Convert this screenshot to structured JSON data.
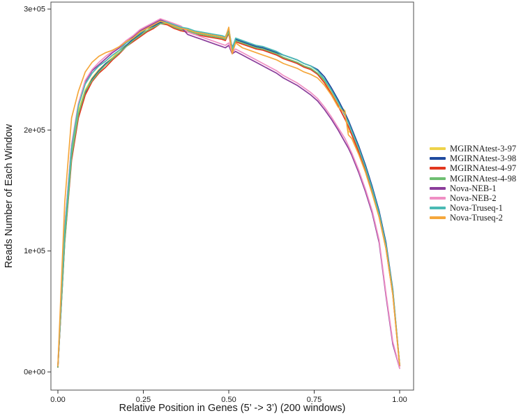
{
  "figure": {
    "background": "#ffffff",
    "panel_border_color": "#4c4c4c",
    "text_color": "#1a1a1a"
  },
  "chart_data": {
    "type": "line",
    "title": "",
    "xlabel": "Relative Position in Genes (5’ -> 3’) (200 windows)",
    "ylabel": "Reads Number of Each Window",
    "grid": false,
    "legend_position": "right",
    "xlim": [
      -0.02,
      1.04
    ],
    "ylim": [
      -15000,
      306000
    ],
    "x_ticks": {
      "values": [
        0,
        0.25,
        0.5,
        0.75,
        1.0
      ],
      "labels": [
        "0.00",
        "0.25",
        "0.50",
        "0.75",
        "1.00"
      ]
    },
    "y_ticks": {
      "values": [
        0,
        100000,
        200000,
        300000
      ],
      "labels": [
        "0e+00",
        "1e+05",
        "2e+05",
        "3e+05"
      ]
    },
    "values_scale": 1000,
    "x": [
      0,
      0.02,
      0.04,
      0.06,
      0.08,
      0.1,
      0.12,
      0.14,
      0.16,
      0.18,
      0.2,
      0.22,
      0.24,
      0.26,
      0.28,
      0.3,
      0.32,
      0.34,
      0.36,
      0.38,
      0.4,
      0.42,
      0.44,
      0.46,
      0.48,
      0.49,
      0.5,
      0.51,
      0.52,
      0.54,
      0.56,
      0.58,
      0.6,
      0.62,
      0.64,
      0.66,
      0.68,
      0.7,
      0.72,
      0.74,
      0.76,
      0.78,
      0.8,
      0.82,
      0.84,
      0.85,
      0.86,
      0.88,
      0.9,
      0.92,
      0.94,
      0.96,
      0.98,
      1.0
    ],
    "series": [
      {
        "name": "MGIRNAtest-3-97",
        "color": "#EED34A",
        "values": [
          4,
          110,
          179,
          216,
          233,
          243,
          250,
          255,
          260,
          266,
          270,
          274,
          280,
          282,
          287,
          290,
          288,
          285,
          284,
          283,
          280,
          281,
          278,
          277,
          276,
          277,
          283,
          266,
          275,
          272,
          270,
          268,
          267,
          265,
          263,
          260,
          258,
          256,
          253,
          251,
          247,
          240,
          231,
          221,
          216,
          199,
          197,
          183,
          167,
          149,
          129,
          103,
          65,
          6
        ]
      },
      {
        "name": "MGIRNAtest-3-98",
        "color": "#1F4A9E",
        "values": [
          4,
          109,
          177,
          212,
          231,
          242,
          249,
          255,
          259,
          264,
          270,
          275,
          279,
          284,
          286,
          289,
          289,
          286,
          284,
          282,
          281,
          280,
          279,
          278,
          277,
          276,
          282,
          268,
          275,
          273,
          271,
          269,
          268,
          266,
          264,
          262,
          260,
          258,
          255,
          253,
          250,
          244,
          235,
          225,
          214,
          208,
          201,
          187,
          171,
          153,
          133,
          107,
          68,
          6
        ]
      },
      {
        "name": "MGIRNAtest-4-97",
        "color": "#E2371F",
        "values": [
          4,
          107,
          175,
          210,
          229,
          240,
          247,
          252,
          258,
          263,
          269,
          273,
          277,
          281,
          284,
          288,
          287,
          284,
          282,
          281,
          279,
          278,
          277,
          276,
          275,
          274,
          280,
          264,
          273,
          271,
          269,
          267,
          266,
          264,
          262,
          259,
          257,
          255,
          252,
          250,
          246,
          239,
          230,
          220,
          209,
          203,
          196,
          182,
          166,
          148,
          128,
          102,
          64,
          5
        ]
      },
      {
        "name": "MGIRNAtest-4-98",
        "color": "#6EBE71",
        "values": [
          4,
          108,
          178,
          213,
          232,
          241,
          248,
          254,
          259,
          264,
          269,
          274,
          278,
          282,
          285,
          288,
          288,
          285,
          283,
          282,
          280,
          279,
          278,
          277,
          276,
          275,
          281,
          266,
          274,
          272,
          270,
          268,
          267,
          265,
          263,
          260,
          258,
          256,
          253,
          251,
          247,
          241,
          233,
          223,
          212,
          206,
          199,
          185,
          169,
          151,
          131,
          105,
          67,
          6
        ]
      },
      {
        "name": "Nova-NEB-1",
        "color": "#8B3D9B",
        "values": [
          5,
          119,
          187,
          221,
          240,
          249,
          254,
          259,
          264,
          268,
          273,
          277,
          282,
          285,
          288,
          291,
          289,
          287,
          285,
          279,
          277,
          275,
          273,
          271,
          269,
          268,
          270,
          263,
          265,
          262,
          259,
          256,
          253,
          250,
          247,
          243,
          240,
          237,
          233,
          229,
          224,
          217,
          209,
          200,
          190,
          185,
          179,
          165,
          149,
          131,
          107,
          63,
          23,
          3
        ]
      },
      {
        "name": "Nova-NEB-2",
        "color": "#F08FC4",
        "values": [
          5,
          120,
          188,
          222,
          241,
          250,
          256,
          261,
          265,
          269,
          274,
          278,
          283,
          286,
          289,
          292,
          290,
          288,
          286,
          281,
          279,
          277,
          275,
          273,
          271,
          270,
          272,
          264,
          267,
          264,
          261,
          258,
          255,
          252,
          249,
          245,
          242,
          239,
          235,
          231,
          226,
          219,
          211,
          202,
          193,
          187,
          181,
          167,
          151,
          133,
          109,
          65,
          25,
          3
        ]
      },
      {
        "name": "Nova-Truseq-1",
        "color": "#4ABAB4",
        "values": [
          5,
          117,
          185,
          220,
          238,
          247,
          253,
          257,
          262,
          266,
          272,
          276,
          280,
          284,
          287,
          290,
          289,
          287,
          285,
          284,
          282,
          281,
          280,
          279,
          278,
          277,
          284,
          267,
          276,
          274,
          272,
          270,
          269,
          267,
          265,
          262,
          260,
          258,
          255,
          253,
          249,
          242,
          233,
          223,
          212,
          206,
          199,
          185,
          169,
          151,
          131,
          105,
          66,
          6
        ]
      },
      {
        "name": "Nova-Truseq-2",
        "color": "#F5A73B",
        "values": [
          5,
          140,
          210,
          232,
          248,
          256,
          261,
          264,
          266,
          269,
          273,
          276,
          281,
          284,
          287,
          290,
          288,
          286,
          284,
          283,
          281,
          280,
          279,
          278,
          277,
          276,
          285,
          263,
          272,
          268,
          266,
          264,
          262,
          260,
          258,
          255,
          253,
          251,
          248,
          246,
          243,
          237,
          229,
          219,
          214,
          196,
          193,
          180,
          165,
          147,
          128,
          102,
          64,
          6
        ]
      }
    ]
  }
}
